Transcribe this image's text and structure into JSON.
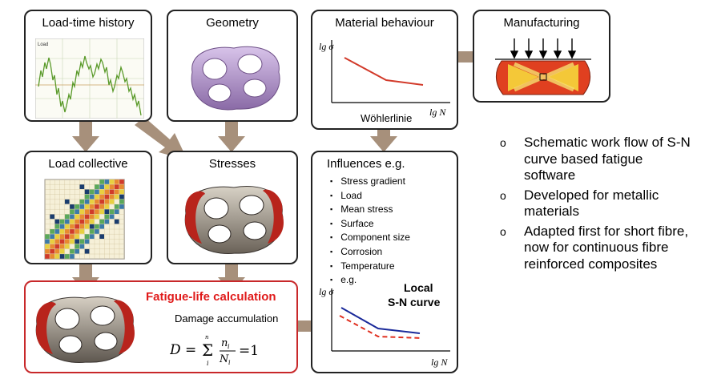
{
  "boxes": {
    "load_time": {
      "title": "Load-time history",
      "chart_label": "Load"
    },
    "geometry": {
      "title": "Geometry"
    },
    "material": {
      "title": "Material behaviour",
      "y_label": "lg σ",
      "x_label": "lg N",
      "curve_label": "Wöhlerlinie"
    },
    "manufacturing": {
      "title": "Manufacturing"
    },
    "load_collective": {
      "title": "Load collective"
    },
    "stresses": {
      "title": "Stresses"
    },
    "influences": {
      "title": "Influences e.g.",
      "items": [
        "Stress gradient",
        "Load",
        "Mean stress",
        "Surface",
        "Component size",
        "Corrosion",
        "Temperature",
        "e.g."
      ],
      "y_label": "lg σ",
      "x_label": "lg N",
      "local_label_1": "Local",
      "local_label_2": "S-N curve"
    },
    "fatigue": {
      "title": "Fatigue-life calculation",
      "subtitle": "Damage accumulation",
      "formula_lhs": "D =",
      "formula_sum": "Σ",
      "formula_sum_top": "n",
      "formula_sum_bottom": "i",
      "formula_num": "n",
      "formula_num_sub": "i",
      "formula_den": "N",
      "formula_den_sub": "i",
      "formula_rhs": "=1"
    }
  },
  "bullets": [
    "Schematic work flow of S-N curve based fatigue software",
    "Developed for metallic materials",
    "Adapted first for short fibre, now for continuous fibre reinforced composites"
  ],
  "bullet_marker": "o",
  "colors": {
    "arrow": "#a7907b",
    "accent_red": "#c8282a",
    "title_red": "#e01a1a",
    "curve_blue": "#1a2a9a",
    "curve_red": "#e03020",
    "grid_green": "#6aa832"
  }
}
